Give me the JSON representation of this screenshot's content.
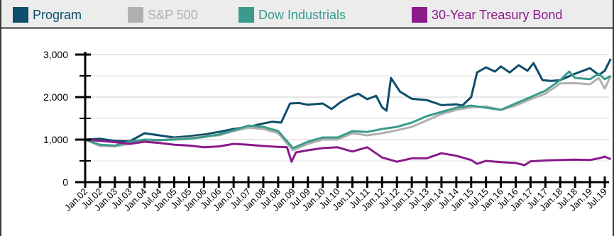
{
  "chart_data": {
    "type": "line",
    "title": "",
    "xlabel": "",
    "ylabel": "",
    "ylim": [
      0,
      3000
    ],
    "yticks": [
      0,
      1000,
      2000,
      3000
    ],
    "ytick_labels": [
      "0",
      "1,000",
      "2,000",
      "3,000"
    ],
    "grid": true,
    "legend_position": "top",
    "x_tick_labels": [
      "Jan.02",
      "Jul.02",
      "Jan.03",
      "Jul.03",
      "Jan.04",
      "Jul.04",
      "Jan.05",
      "Jul.05",
      "Jan.06",
      "Jul.06",
      "Jan.07",
      "Jul.07",
      "Jan.08",
      "Jul.08",
      "Jan.09",
      "Jul.09",
      "Jan.10",
      "Jul.10",
      "Jan.11",
      "Jul.11",
      "Jan.12",
      "Jul.12",
      "Jan.13",
      "Jul.13",
      "Jan.14",
      "Jul.14",
      "Jan.15",
      "Jul.15",
      "Jan.16",
      "Jul.16",
      "Jan.17",
      "Jul.17",
      "Jan.18",
      "Jul.18",
      "Jan.19",
      "Jul.19"
    ],
    "series": [
      {
        "name": "Program",
        "color": "#0e4d6b",
        "points": [
          [
            2002.0,
            1000
          ],
          [
            2002.5,
            1020
          ],
          [
            2003.0,
            970
          ],
          [
            2003.5,
            960
          ],
          [
            2004.0,
            1150
          ],
          [
            2004.5,
            1100
          ],
          [
            2005.0,
            1050
          ],
          [
            2005.5,
            1080
          ],
          [
            2006.0,
            1120
          ],
          [
            2006.5,
            1180
          ],
          [
            2007.0,
            1250
          ],
          [
            2007.5,
            1300
          ],
          [
            2008.0,
            1380
          ],
          [
            2008.3,
            1420
          ],
          [
            2008.6,
            1400
          ],
          [
            2008.9,
            1850
          ],
          [
            2009.2,
            1860
          ],
          [
            2009.5,
            1820
          ],
          [
            2010.0,
            1850
          ],
          [
            2010.3,
            1720
          ],
          [
            2010.6,
            1880
          ],
          [
            2010.9,
            2000
          ],
          [
            2011.2,
            2080
          ],
          [
            2011.5,
            1950
          ],
          [
            2011.8,
            2030
          ],
          [
            2012.0,
            1760
          ],
          [
            2012.15,
            1680
          ],
          [
            2012.3,
            2450
          ],
          [
            2012.6,
            2130
          ],
          [
            2013.0,
            1960
          ],
          [
            2013.5,
            1930
          ],
          [
            2013.8,
            1860
          ],
          [
            2014.0,
            1810
          ],
          [
            2014.5,
            1830
          ],
          [
            2014.7,
            1800
          ],
          [
            2015.0,
            2000
          ],
          [
            2015.2,
            2580
          ],
          [
            2015.5,
            2700
          ],
          [
            2015.8,
            2600
          ],
          [
            2016.0,
            2720
          ],
          [
            2016.3,
            2580
          ],
          [
            2016.6,
            2750
          ],
          [
            2016.9,
            2620
          ],
          [
            2017.1,
            2800
          ],
          [
            2017.4,
            2400
          ],
          [
            2017.7,
            2380
          ],
          [
            2018.0,
            2400
          ],
          [
            2018.5,
            2550
          ],
          [
            2019.0,
            2680
          ],
          [
            2019.3,
            2520
          ],
          [
            2019.5,
            2620
          ],
          [
            2019.7,
            2900
          ]
        ]
      },
      {
        "name": "S&P 500",
        "color": "#b0b0b0",
        "points": [
          [
            2002.0,
            1000
          ],
          [
            2002.5,
            850
          ],
          [
            2003.0,
            840
          ],
          [
            2003.5,
            900
          ],
          [
            2004.0,
            980
          ],
          [
            2004.5,
            980
          ],
          [
            2005.0,
            1020
          ],
          [
            2005.5,
            1040
          ],
          [
            2006.0,
            1080
          ],
          [
            2006.5,
            1100
          ],
          [
            2007.0,
            1200
          ],
          [
            2007.5,
            1280
          ],
          [
            2008.0,
            1250
          ],
          [
            2008.5,
            1150
          ],
          [
            2009.0,
            750
          ],
          [
            2009.5,
            900
          ],
          [
            2010.0,
            1000
          ],
          [
            2010.5,
            1000
          ],
          [
            2011.0,
            1150
          ],
          [
            2011.5,
            1100
          ],
          [
            2012.0,
            1150
          ],
          [
            2012.5,
            1220
          ],
          [
            2013.0,
            1300
          ],
          [
            2013.5,
            1450
          ],
          [
            2014.0,
            1600
          ],
          [
            2014.5,
            1700
          ],
          [
            2015.0,
            1760
          ],
          [
            2015.5,
            1780
          ],
          [
            2016.0,
            1700
          ],
          [
            2016.5,
            1800
          ],
          [
            2017.0,
            1950
          ],
          [
            2017.5,
            2080
          ],
          [
            2018.0,
            2320
          ],
          [
            2018.5,
            2330
          ],
          [
            2019.0,
            2300
          ],
          [
            2019.3,
            2450
          ],
          [
            2019.5,
            2200
          ],
          [
            2019.7,
            2500
          ]
        ]
      },
      {
        "name": "Dow Industrials",
        "color": "#3a9b8c",
        "points": [
          [
            2002.0,
            1000
          ],
          [
            2002.5,
            880
          ],
          [
            2003.0,
            860
          ],
          [
            2003.5,
            950
          ],
          [
            2004.0,
            1000
          ],
          [
            2004.5,
            990
          ],
          [
            2005.0,
            1000
          ],
          [
            2005.5,
            1020
          ],
          [
            2006.0,
            1060
          ],
          [
            2006.5,
            1120
          ],
          [
            2007.0,
            1220
          ],
          [
            2007.5,
            1330
          ],
          [
            2008.0,
            1300
          ],
          [
            2008.5,
            1200
          ],
          [
            2009.0,
            800
          ],
          [
            2009.5,
            950
          ],
          [
            2010.0,
            1050
          ],
          [
            2010.5,
            1050
          ],
          [
            2011.0,
            1200
          ],
          [
            2011.5,
            1180
          ],
          [
            2012.0,
            1250
          ],
          [
            2012.5,
            1300
          ],
          [
            2013.0,
            1400
          ],
          [
            2013.5,
            1550
          ],
          [
            2014.0,
            1650
          ],
          [
            2014.5,
            1750
          ],
          [
            2015.0,
            1800
          ],
          [
            2015.5,
            1750
          ],
          [
            2016.0,
            1700
          ],
          [
            2016.5,
            1850
          ],
          [
            2017.0,
            2000
          ],
          [
            2017.5,
            2150
          ],
          [
            2018.0,
            2400
          ],
          [
            2018.3,
            2600
          ],
          [
            2018.5,
            2450
          ],
          [
            2019.0,
            2420
          ],
          [
            2019.3,
            2550
          ],
          [
            2019.5,
            2420
          ],
          [
            2019.7,
            2500
          ]
        ]
      },
      {
        "name": "30-Year Treasury Bond",
        "color": "#8b1a8b",
        "points": [
          [
            2002.0,
            1000
          ],
          [
            2002.5,
            970
          ],
          [
            2003.0,
            940
          ],
          [
            2003.5,
            900
          ],
          [
            2004.0,
            950
          ],
          [
            2004.5,
            920
          ],
          [
            2005.0,
            880
          ],
          [
            2005.5,
            860
          ],
          [
            2006.0,
            820
          ],
          [
            2006.5,
            840
          ],
          [
            2007.0,
            900
          ],
          [
            2007.5,
            880
          ],
          [
            2008.0,
            850
          ],
          [
            2008.5,
            830
          ],
          [
            2008.8,
            820
          ],
          [
            2008.95,
            480
          ],
          [
            2009.1,
            700
          ],
          [
            2009.5,
            750
          ],
          [
            2010.0,
            800
          ],
          [
            2010.5,
            820
          ],
          [
            2011.0,
            720
          ],
          [
            2011.5,
            820
          ],
          [
            2012.0,
            580
          ],
          [
            2012.5,
            480
          ],
          [
            2013.0,
            560
          ],
          [
            2013.5,
            560
          ],
          [
            2014.0,
            680
          ],
          [
            2014.5,
            620
          ],
          [
            2015.0,
            520
          ],
          [
            2015.2,
            430
          ],
          [
            2015.5,
            500
          ],
          [
            2016.0,
            470
          ],
          [
            2016.5,
            450
          ],
          [
            2016.8,
            400
          ],
          [
            2017.0,
            490
          ],
          [
            2017.5,
            510
          ],
          [
            2018.0,
            520
          ],
          [
            2018.5,
            530
          ],
          [
            2019.0,
            520
          ],
          [
            2019.3,
            560
          ],
          [
            2019.5,
            600
          ],
          [
            2019.7,
            540
          ]
        ]
      }
    ]
  }
}
